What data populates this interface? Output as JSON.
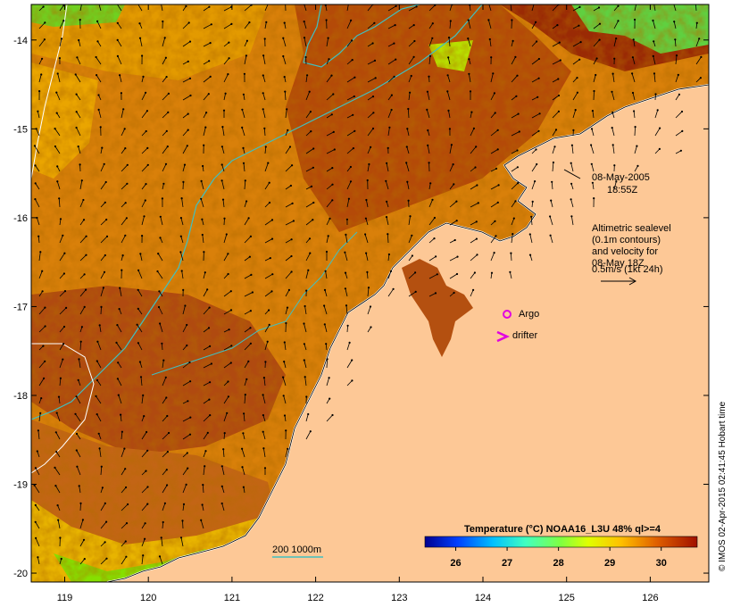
{
  "map": {
    "y_axis_labels": [
      "-14",
      "-15",
      "-16",
      "-17",
      "-18",
      "-19",
      "-20"
    ],
    "x_axis_labels": [
      "119",
      "120",
      "121",
      "122",
      "123",
      "124",
      "125",
      "126"
    ],
    "lon_range": [
      118.6,
      126.7
    ],
    "lat_range": [
      -20.1,
      -13.6
    ]
  },
  "annotations": {
    "date": "08-May-2005",
    "time": "18:55Z",
    "legend_lines": [
      "Altimetric sealevel",
      "(0.1m contours)",
      "and velocity for",
      "08-May 18Z",
      "0.5m/s (1kt 24h)"
    ],
    "argo_label": "Argo",
    "drifter_label": "drifter",
    "bathy_label": "200  1000m"
  },
  "colorbar": {
    "title": "Temperature (°C) NOAA16_L3U 48% ql>=4",
    "ticks": [
      "26",
      "27",
      "28",
      "29",
      "30"
    ],
    "range": [
      25.4,
      30.7
    ]
  },
  "credit": "© IMOS 02-Apr-2015 02:41:45 Hobart time",
  "colors": {
    "land": "#fdc896",
    "sst_warm": "#a83000",
    "sst_mid": "#d46a00",
    "sst_cool": "#e8a400",
    "bathy_200": "#40c0c0",
    "bathy_1000": "#ffffff",
    "argo": "#e000e0",
    "drifter": "#e000e0"
  }
}
